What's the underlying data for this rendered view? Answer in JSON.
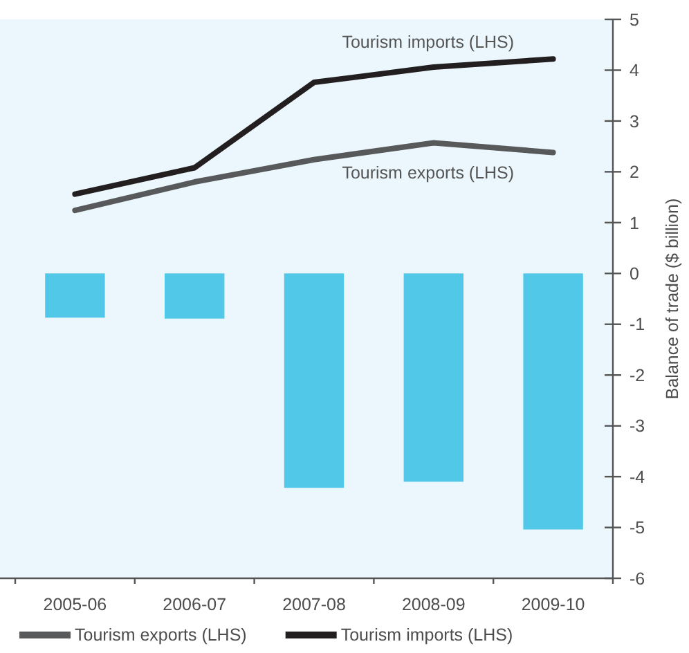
{
  "chart_data": {
    "type": "bar",
    "categories": [
      "2005-06",
      "2006-07",
      "2007-08",
      "2008-09",
      "2009-10"
    ],
    "series": [
      {
        "color": "#52c8e8",
        "axis": "y2",
        "values": [
          -0.87,
          -0.89,
          -4.22,
          -4.1,
          -5.04
        ]
      },
      {
        "type": "line",
        "name": "Tourism exports (LHS)",
        "color": "#58595b",
        "axis": "y2",
        "values": [
          1.24,
          1.8,
          2.24,
          2.57,
          2.38
        ]
      },
      {
        "type": "line",
        "name": "Tourism imports (LHS)",
        "color": "#231f20",
        "axis": "y2",
        "values": [
          1.56,
          2.08,
          3.76,
          4.06,
          4.22
        ]
      }
    ],
    "y2label": "Balance of trade ($ billion)",
    "y2lim": [
      -6,
      5
    ],
    "y2ticks": [
      5,
      4,
      3,
      2,
      1,
      0,
      -1,
      -2,
      -3,
      -4,
      -5,
      -6
    ],
    "legend": "bottom"
  }
}
